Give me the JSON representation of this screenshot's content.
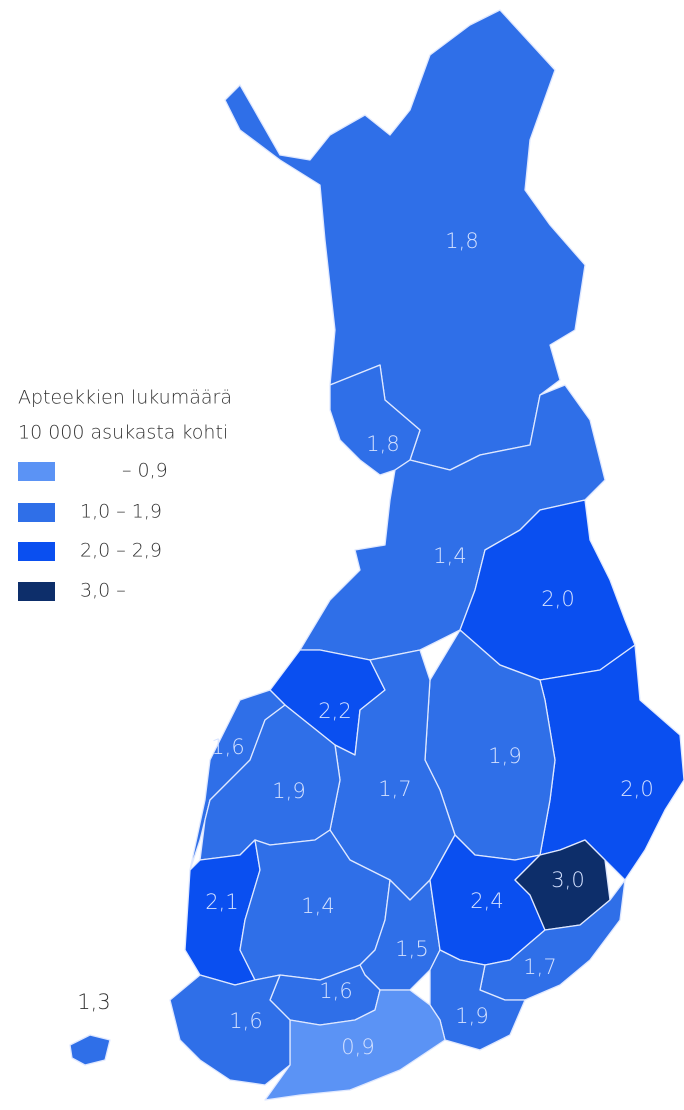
{
  "legend": {
    "title": [
      "Apteekkien lukumäärä",
      "10 000 asukasta kohti"
    ],
    "items": [
      {
        "label": "– 0,9",
        "color": "#5b93f5"
      },
      {
        "label": "1,0 – 1,9",
        "color": "#2f6fe8"
      },
      {
        "label": "2,0 – 2,9",
        "color": "#0a4ff0"
      },
      {
        "label": "3,0 –",
        "color": "#0d2e6a"
      }
    ]
  },
  "regions": [
    {
      "label": "1,8",
      "color": "#2f6fe8"
    },
    {
      "label": "1,8",
      "color": "#2f6fe8"
    },
    {
      "label": "1,4",
      "color": "#2f6fe8"
    },
    {
      "label": "2,0",
      "color": "#0a4ff0"
    },
    {
      "label": "2,0",
      "color": "#0a4ff0"
    },
    {
      "label": "1,9",
      "color": "#2f6fe8"
    },
    {
      "label": "2,2",
      "color": "#0a4ff0"
    },
    {
      "label": "1,7",
      "color": "#2f6fe8"
    },
    {
      "label": "1,6",
      "color": "#2f6fe8"
    },
    {
      "label": "1,9",
      "color": "#2f6fe8"
    },
    {
      "label": "2,1",
      "color": "#0a4ff0"
    },
    {
      "label": "1,4",
      "color": "#2f6fe8"
    },
    {
      "label": "1,5",
      "color": "#2f6fe8"
    },
    {
      "label": "2,4",
      "color": "#0a4ff0"
    },
    {
      "label": "3,0",
      "color": "#0d2e6a"
    },
    {
      "label": "1,7",
      "color": "#2f6fe8"
    },
    {
      "label": "1,9",
      "color": "#2f6fe8"
    },
    {
      "label": "1,6",
      "color": "#2f6fe8"
    },
    {
      "label": "0,9",
      "color": "#5b93f5"
    },
    {
      "label": "1,6",
      "color": "#2f6fe8"
    },
    {
      "label": "1,3",
      "color": "#2f6fe8"
    }
  ]
}
